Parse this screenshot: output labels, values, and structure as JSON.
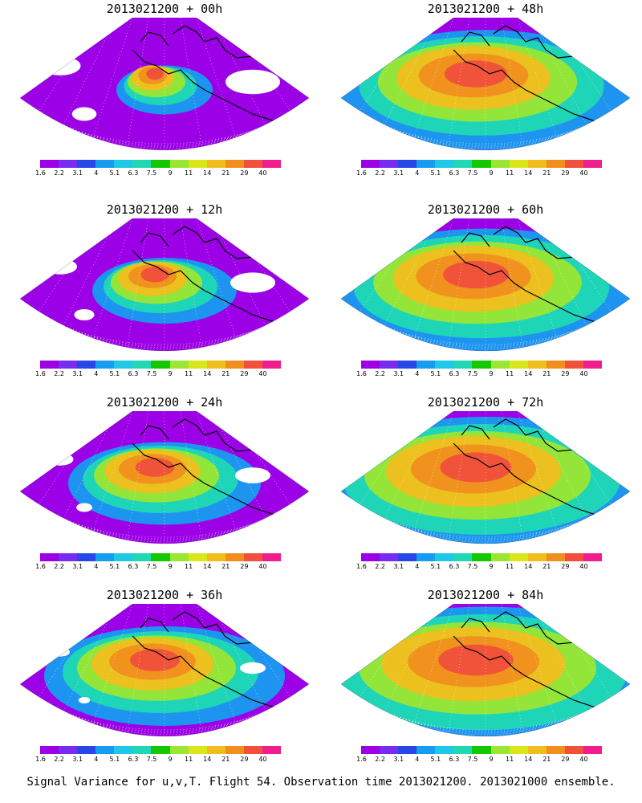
{
  "panels": [
    {
      "title": "2013021200 + 00h",
      "fill": 0.15
    },
    {
      "title": "2013021200 + 48h",
      "fill": 0.78
    },
    {
      "title": "2013021200 + 12h",
      "fill": 0.3
    },
    {
      "title": "2013021200 + 60h",
      "fill": 0.82
    },
    {
      "title": "2013021200 + 24h",
      "fill": 0.45
    },
    {
      "title": "2013021200 + 72h",
      "fill": 0.9
    },
    {
      "title": "2013021200 + 36h",
      "fill": 0.6
    },
    {
      "title": "2013021200 + 84h",
      "fill": 0.95
    }
  ],
  "legend": {
    "labels": [
      "1.6",
      "2.2",
      "3.1",
      "4",
      "5.1",
      "6.3",
      "7.5",
      "9",
      "11",
      "14",
      "21",
      "29",
      "40"
    ],
    "colors": [
      "#9b00e6",
      "#7a2bf0",
      "#2747e8",
      "#169df0",
      "#1ec8e6",
      "#20d8b4",
      "#14c800",
      "#9ae633",
      "#d9e61a",
      "#f0be1c",
      "#f08f1e",
      "#f0503c",
      "#f01e8c"
    ]
  },
  "caption": "Signal Variance for u,v,T. Flight 54. Observation time 2013021200. 2013021000 ensemble."
}
